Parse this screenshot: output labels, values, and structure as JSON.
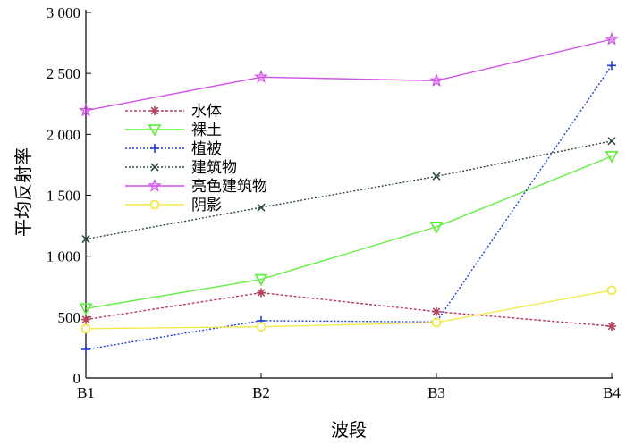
{
  "chart_data": {
    "type": "line",
    "categories": [
      "B1",
      "B2",
      "B3",
      "B4"
    ],
    "xlabel": "波段",
    "ylabel": "平均反射率",
    "ylim": [
      0,
      3000
    ],
    "yticks": [
      0,
      500,
      1000,
      1500,
      2000,
      2500,
      3000
    ],
    "ytick_labels": [
      "0",
      "500",
      "1 000",
      "1 500",
      "2 000",
      "2 500",
      "3 000"
    ],
    "grid": false,
    "legend_position": "upper-left",
    "series": [
      {
        "name": "水体",
        "values": [
          480,
          700,
          545,
          425
        ],
        "color": "#b5405b",
        "marker": "asterisk",
        "dash": "3,2"
      },
      {
        "name": "裸土",
        "values": [
          570,
          810,
          1240,
          1820
        ],
        "color": "#66ee44",
        "marker": "triangle-down",
        "dash": ""
      },
      {
        "name": "植被",
        "values": [
          235,
          470,
          460,
          2565
        ],
        "color": "#1f3fd6",
        "marker": "plus",
        "dash": "2,2"
      },
      {
        "name": "建筑物",
        "values": [
          1140,
          1400,
          1655,
          1945
        ],
        "color": "#2e4a3a",
        "marker": "x",
        "dash": "2,2"
      },
      {
        "name": "亮色建筑物",
        "values": [
          2195,
          2470,
          2440,
          2780
        ],
        "color": "#d052e8",
        "marker": "star",
        "dash": ""
      },
      {
        "name": "阴影",
        "values": [
          405,
          420,
          455,
          720
        ],
        "color": "#f2ea4a",
        "marker": "circle",
        "dash": ""
      }
    ]
  }
}
